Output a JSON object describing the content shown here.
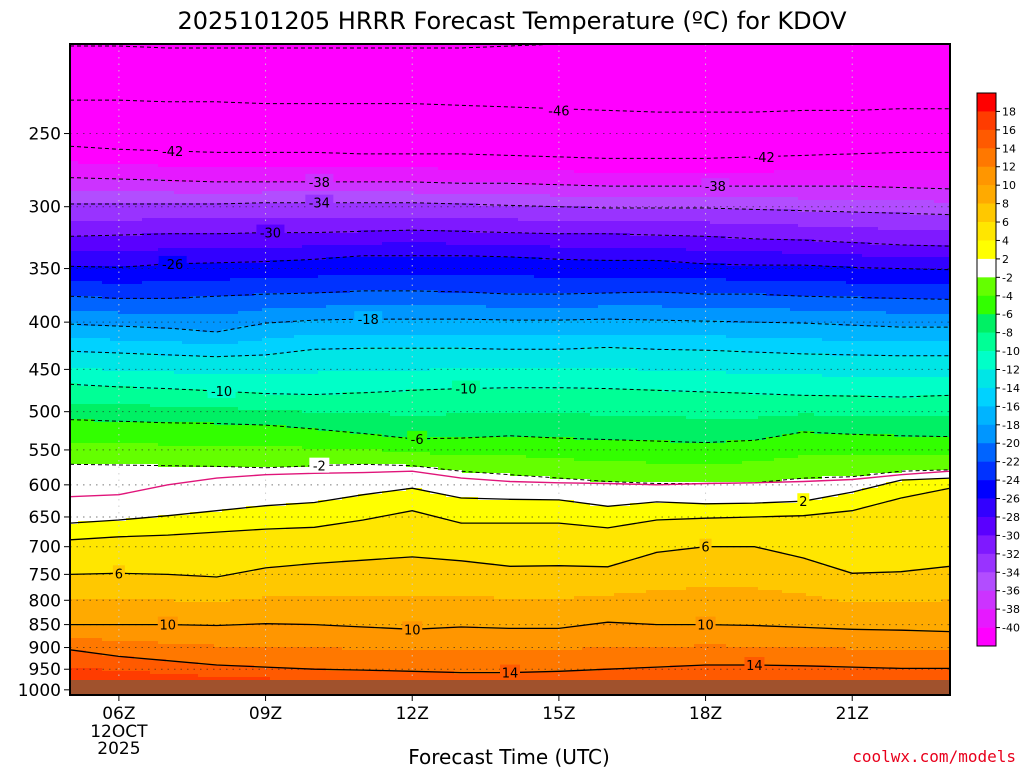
{
  "chart_data": {
    "type": "heatmap",
    "title": "2025101205 HRRR Forecast Temperature (ºC) for KDOV",
    "xlabel": "Forecast Time (UTC)",
    "ylabel": "",
    "credit": "coolwx.com/models",
    "x_range_hours": [
      5,
      23
    ],
    "y_range_hpa": [
      200,
      1013
    ],
    "x_ticks": [
      {
        "hour": 6,
        "label": "06Z",
        "sub": [
          "12OCT",
          "2025"
        ]
      },
      {
        "hour": 9,
        "label": "09Z"
      },
      {
        "hour": 12,
        "label": "12Z"
      },
      {
        "hour": 15,
        "label": "15Z"
      },
      {
        "hour": 18,
        "label": "18Z"
      },
      {
        "hour": 21,
        "label": "21Z"
      }
    ],
    "y_ticks": [
      250,
      300,
      350,
      400,
      450,
      500,
      550,
      600,
      650,
      700,
      750,
      800,
      850,
      900,
      950,
      1000
    ],
    "surface_hpa": 1002,
    "colorbar": {
      "levels": [
        -40,
        -38,
        -36,
        -34,
        -32,
        -30,
        -28,
        -26,
        -24,
        -22,
        -20,
        -18,
        -16,
        -14,
        -12,
        -10,
        -8,
        -6,
        -4,
        -2,
        2,
        4,
        6,
        8,
        10,
        12,
        14,
        16,
        18
      ],
      "colors": [
        "#ff00ff",
        "#e619ff",
        "#cc33ff",
        "#b24dff",
        "#9933ff",
        "#7f19ff",
        "#5a00ff",
        "#3200ff",
        "#0000ff",
        "#0032ff",
        "#0064ff",
        "#0096ff",
        "#00b4ff",
        "#00d2ff",
        "#00e6e6",
        "#00ffc8",
        "#00ff96",
        "#00f064",
        "#32ff00",
        "#64ff00",
        "#ffffff",
        "#ffff00",
        "#ffe600",
        "#ffc800",
        "#ffaa00",
        "#ff9600",
        "#ff7800",
        "#ff5a00",
        "#ff3c00",
        "#ff0000"
      ]
    },
    "isotherm_columns": {
      "hours": [
        5,
        6,
        7,
        8,
        9,
        10,
        11,
        12,
        13,
        14,
        15,
        16,
        17,
        18,
        19,
        20,
        21,
        22,
        23
      ],
      "levels": [
        {
          "t": -50,
          "p": [
            201,
            201,
            202,
            202,
            202,
            202,
            202,
            202,
            202,
            201,
            200,
            198,
            195,
            193,
            192,
            192,
            192,
            192,
            192
          ]
        },
        {
          "t": -46,
          "p": [
            230,
            230,
            231,
            231,
            232,
            232,
            232,
            232,
            233,
            234,
            235,
            236,
            237,
            237,
            237,
            236,
            236,
            235,
            235
          ]
        },
        {
          "t": -42,
          "p": [
            258,
            260,
            261,
            262,
            262,
            262,
            263,
            263,
            263,
            264,
            265,
            266,
            266,
            266,
            265,
            264,
            263,
            262,
            262
          ]
        },
        {
          "t": -38,
          "p": [
            279,
            280,
            281,
            282,
            282,
            282,
            282,
            282,
            283,
            283,
            284,
            285,
            285,
            285,
            285,
            285,
            285,
            286,
            287
          ]
        },
        {
          "t": -34,
          "p": [
            298,
            298,
            298,
            298,
            297,
            297,
            297,
            297,
            298,
            299,
            300,
            301,
            301,
            301,
            302,
            303,
            304,
            305,
            306
          ]
        },
        {
          "t": -30,
          "p": [
            323,
            322,
            321,
            321,
            320,
            320,
            319,
            318,
            319,
            320,
            321,
            321,
            322,
            323,
            325,
            326,
            328,
            330,
            331
          ]
        },
        {
          "t": -26,
          "p": [
            348,
            349,
            346,
            345,
            344,
            342,
            339,
            339,
            339,
            340,
            342,
            343,
            343,
            346,
            347,
            347,
            349,
            350,
            351
          ]
        },
        {
          "t": -22,
          "p": [
            375,
            377,
            377,
            375,
            373,
            372,
            370,
            370,
            371,
            373,
            373,
            372,
            371,
            373,
            373,
            375,
            376,
            377,
            378
          ]
        },
        {
          "t": -18,
          "p": [
            402,
            404,
            406,
            410,
            401,
            398,
            397,
            397,
            397,
            398,
            398,
            397,
            398,
            399,
            400,
            401,
            403,
            405,
            405
          ]
        },
        {
          "t": -14,
          "p": [
            430,
            432,
            434,
            436,
            434,
            428,
            427,
            427,
            427,
            428,
            428,
            426,
            428,
            429,
            431,
            433,
            434,
            435,
            435
          ]
        },
        {
          "t": -10,
          "p": [
            467,
            470,
            472,
            475,
            478,
            479,
            477,
            474,
            472,
            471,
            471,
            472,
            474,
            476,
            478,
            480,
            481,
            482,
            480
          ]
        },
        {
          "t": -6,
          "p": [
            510,
            512,
            514,
            515,
            517,
            522,
            528,
            535,
            534,
            531,
            534,
            536,
            538,
            540,
            537,
            526,
            529,
            531,
            532
          ]
        },
        {
          "t": -2,
          "p": [
            570,
            571,
            572,
            573,
            575,
            572,
            570,
            572,
            580,
            585,
            590,
            595,
            598,
            598,
            597,
            590,
            588,
            580,
            578
          ]
        },
        {
          "t": 0,
          "p": [
            618,
            615,
            600,
            590,
            585,
            583,
            582,
            580,
            590,
            595,
            597,
            598,
            600,
            598,
            597,
            595,
            592,
            585,
            580
          ]
        },
        {
          "t": 2,
          "p": [
            660,
            655,
            648,
            640,
            632,
            627,
            615,
            605,
            620,
            622,
            623,
            633,
            626,
            629,
            628,
            625,
            611,
            593,
            590
          ]
        },
        {
          "t": 4,
          "p": [
            688,
            683,
            680,
            675,
            670,
            667,
            655,
            640,
            660,
            660,
            660,
            668,
            655,
            652,
            650,
            648,
            640,
            620,
            605
          ]
        },
        {
          "t": 6,
          "p": [
            750,
            748,
            750,
            755,
            738,
            730,
            724,
            718,
            725,
            735,
            734,
            736,
            710,
            700,
            700,
            720,
            748,
            745,
            735
          ]
        },
        {
          "t": 10,
          "p": [
            850,
            850,
            850,
            852,
            848,
            850,
            855,
            860,
            855,
            858,
            858,
            845,
            850,
            850,
            852,
            856,
            860,
            862,
            865
          ]
        },
        {
          "t": 14,
          "p": [
            905,
            920,
            930,
            940,
            945,
            950,
            952,
            955,
            958,
            958,
            955,
            950,
            945,
            940,
            940,
            942,
            945,
            948,
            948
          ]
        },
        {
          "t": 18,
          "p": [
            985,
            987,
            990,
            995,
            999,
            1003,
            1006,
            1010,
            1012,
            1012,
            1012,
            1012,
            1012,
            1012,
            1012,
            1012,
            1012,
            1012,
            1012
          ]
        }
      ]
    },
    "contour_labels": [
      {
        "text": "-46",
        "hour": 15.0,
        "p": 236
      },
      {
        "text": "-42",
        "hour": 7.1,
        "p": 261
      },
      {
        "text": "-42",
        "hour": 19.2,
        "p": 265
      },
      {
        "text": "-38",
        "hour": 10.1,
        "p": 282
      },
      {
        "text": "-38",
        "hour": 18.2,
        "p": 285
      },
      {
        "text": "-34",
        "hour": 10.1,
        "p": 297
      },
      {
        "text": "-30",
        "hour": 9.1,
        "p": 320
      },
      {
        "text": "-26",
        "hour": 7.1,
        "p": 346
      },
      {
        "text": "-18",
        "hour": 11.1,
        "p": 397
      },
      {
        "text": "-10",
        "hour": 8.1,
        "p": 475
      },
      {
        "text": "-10",
        "hour": 13.1,
        "p": 472
      },
      {
        "text": "-6",
        "hour": 12.1,
        "p": 535
      },
      {
        "text": "-2",
        "hour": 10.1,
        "p": 572
      },
      {
        "text": "2",
        "hour": 20.0,
        "p": 625
      },
      {
        "text": "6",
        "hour": 6.0,
        "p": 748
      },
      {
        "text": "6",
        "hour": 18.0,
        "p": 700
      },
      {
        "text": "10",
        "hour": 7.0,
        "p": 850
      },
      {
        "text": "10",
        "hour": 12.0,
        "p": 860
      },
      {
        "text": "10",
        "hour": 18.0,
        "p": 850
      },
      {
        "text": "14",
        "hour": 14.0,
        "p": 958
      },
      {
        "text": "14",
        "hour": 19.0,
        "p": 940
      }
    ]
  }
}
